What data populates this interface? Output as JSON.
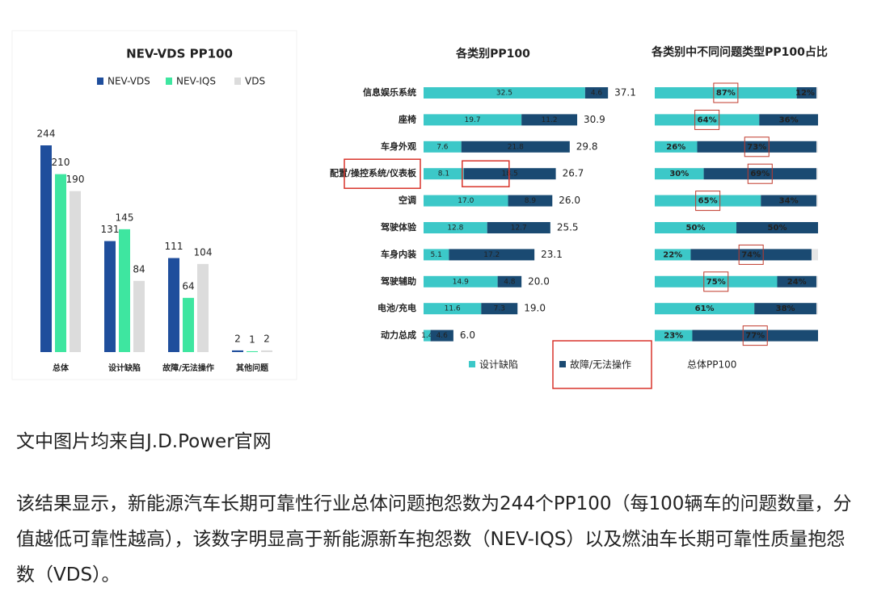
{
  "chart_data": [
    {
      "type": "bar",
      "title": "NEV-VDS PP100",
      "categories": [
        "总体",
        "设计缺陷",
        "故障/无法操作",
        "其他问题"
      ],
      "series": [
        {
          "name": "NEV-VDS",
          "color": "#1f4e9c",
          "values": [
            244,
            131,
            111,
            2
          ]
        },
        {
          "name": "NEV-IQS",
          "color": "#3ee6a0",
          "values": [
            210,
            145,
            64,
            1
          ]
        },
        {
          "name": "VDS",
          "color": "#dcdcdc",
          "values": [
            190,
            84,
            104,
            2
          ]
        }
      ]
    },
    {
      "type": "hbar-stacked",
      "title": "各类别PP100",
      "categories": [
        "信息娱乐系统",
        "座椅",
        "车身外观",
        "配置/操控系统/仪表板",
        "空调",
        "驾驶体验",
        "车身内装",
        "驾驶辅助",
        "电池/充电",
        "动力总成"
      ],
      "series": [
        {
          "name": "设计缺陷",
          "color": "#3cc8c8",
          "values": [
            32.5,
            19.7,
            7.6,
            8.1,
            17,
            12.8,
            5.1,
            14.9,
            11.6,
            1.4
          ],
          "value_labels": [
            "32.5",
            "19.7",
            "7.6",
            "8.1",
            "17.0",
            "12.8",
            "5.1",
            "14.9",
            "11.6",
            "1.4"
          ]
        },
        {
          "name": "故障/无法操作",
          "color": "#1a4a72",
          "values": [
            4.6,
            11.2,
            21.8,
            18.5,
            8.9,
            12.7,
            17.2,
            4.8,
            7.3,
            4.6
          ]
        }
      ],
      "totals": {
        "name": "总体PP100",
        "values": [
          37.1,
          30.9,
          29.8,
          26.7,
          26,
          25.5,
          23.1,
          20,
          19,
          6
        ],
        "value_labels": [
          "37.1",
          "30.9",
          "29.8",
          "26.7",
          "26.0",
          "25.5",
          "23.1",
          "20.0",
          "19.0",
          "6.0"
        ]
      },
      "highlight": 3
    },
    {
      "type": "hbar-percent",
      "title": "各类别中不同问题类型PP100占比",
      "series": [
        {
          "color": "#3cc8c8",
          "values": [
            87,
            64,
            26,
            30,
            65,
            50,
            22,
            75,
            61,
            23
          ],
          "value_labels": [
            "87%",
            "64%",
            "26%",
            "30%",
            "65%",
            "50%",
            "22%",
            "75%",
            "61%",
            "23%"
          ]
        },
        {
          "color": "#1a4a72",
          "values": [
            12,
            36,
            73,
            69,
            34,
            50,
            74,
            24,
            38,
            77
          ],
          "value_labels": [
            "12%",
            "36%",
            "73%",
            "69%",
            "34%",
            "50%",
            "74%",
            "24%",
            "38%",
            "77%"
          ]
        }
      ],
      "highlight": [
        [
          0,
          0
        ],
        [
          1,
          0
        ],
        [
          2,
          1
        ],
        [
          3,
          1
        ],
        [
          4,
          0
        ],
        [
          6,
          1
        ],
        [
          7,
          0
        ],
        [
          9,
          1
        ]
      ]
    }
  ],
  "caption": "文中图片均来自J.D.Power官网",
  "paragraph": "该结果显示，新能源汽车长期可靠性行业总体问题抱怨数为244个PP100（每100辆车的问题数量，分值越低可靠性越高），该数字明显高于新能源新车抱怨数（NEV-IQS）以及燃油车长期可靠性质量抱怨数（VDS）。"
}
